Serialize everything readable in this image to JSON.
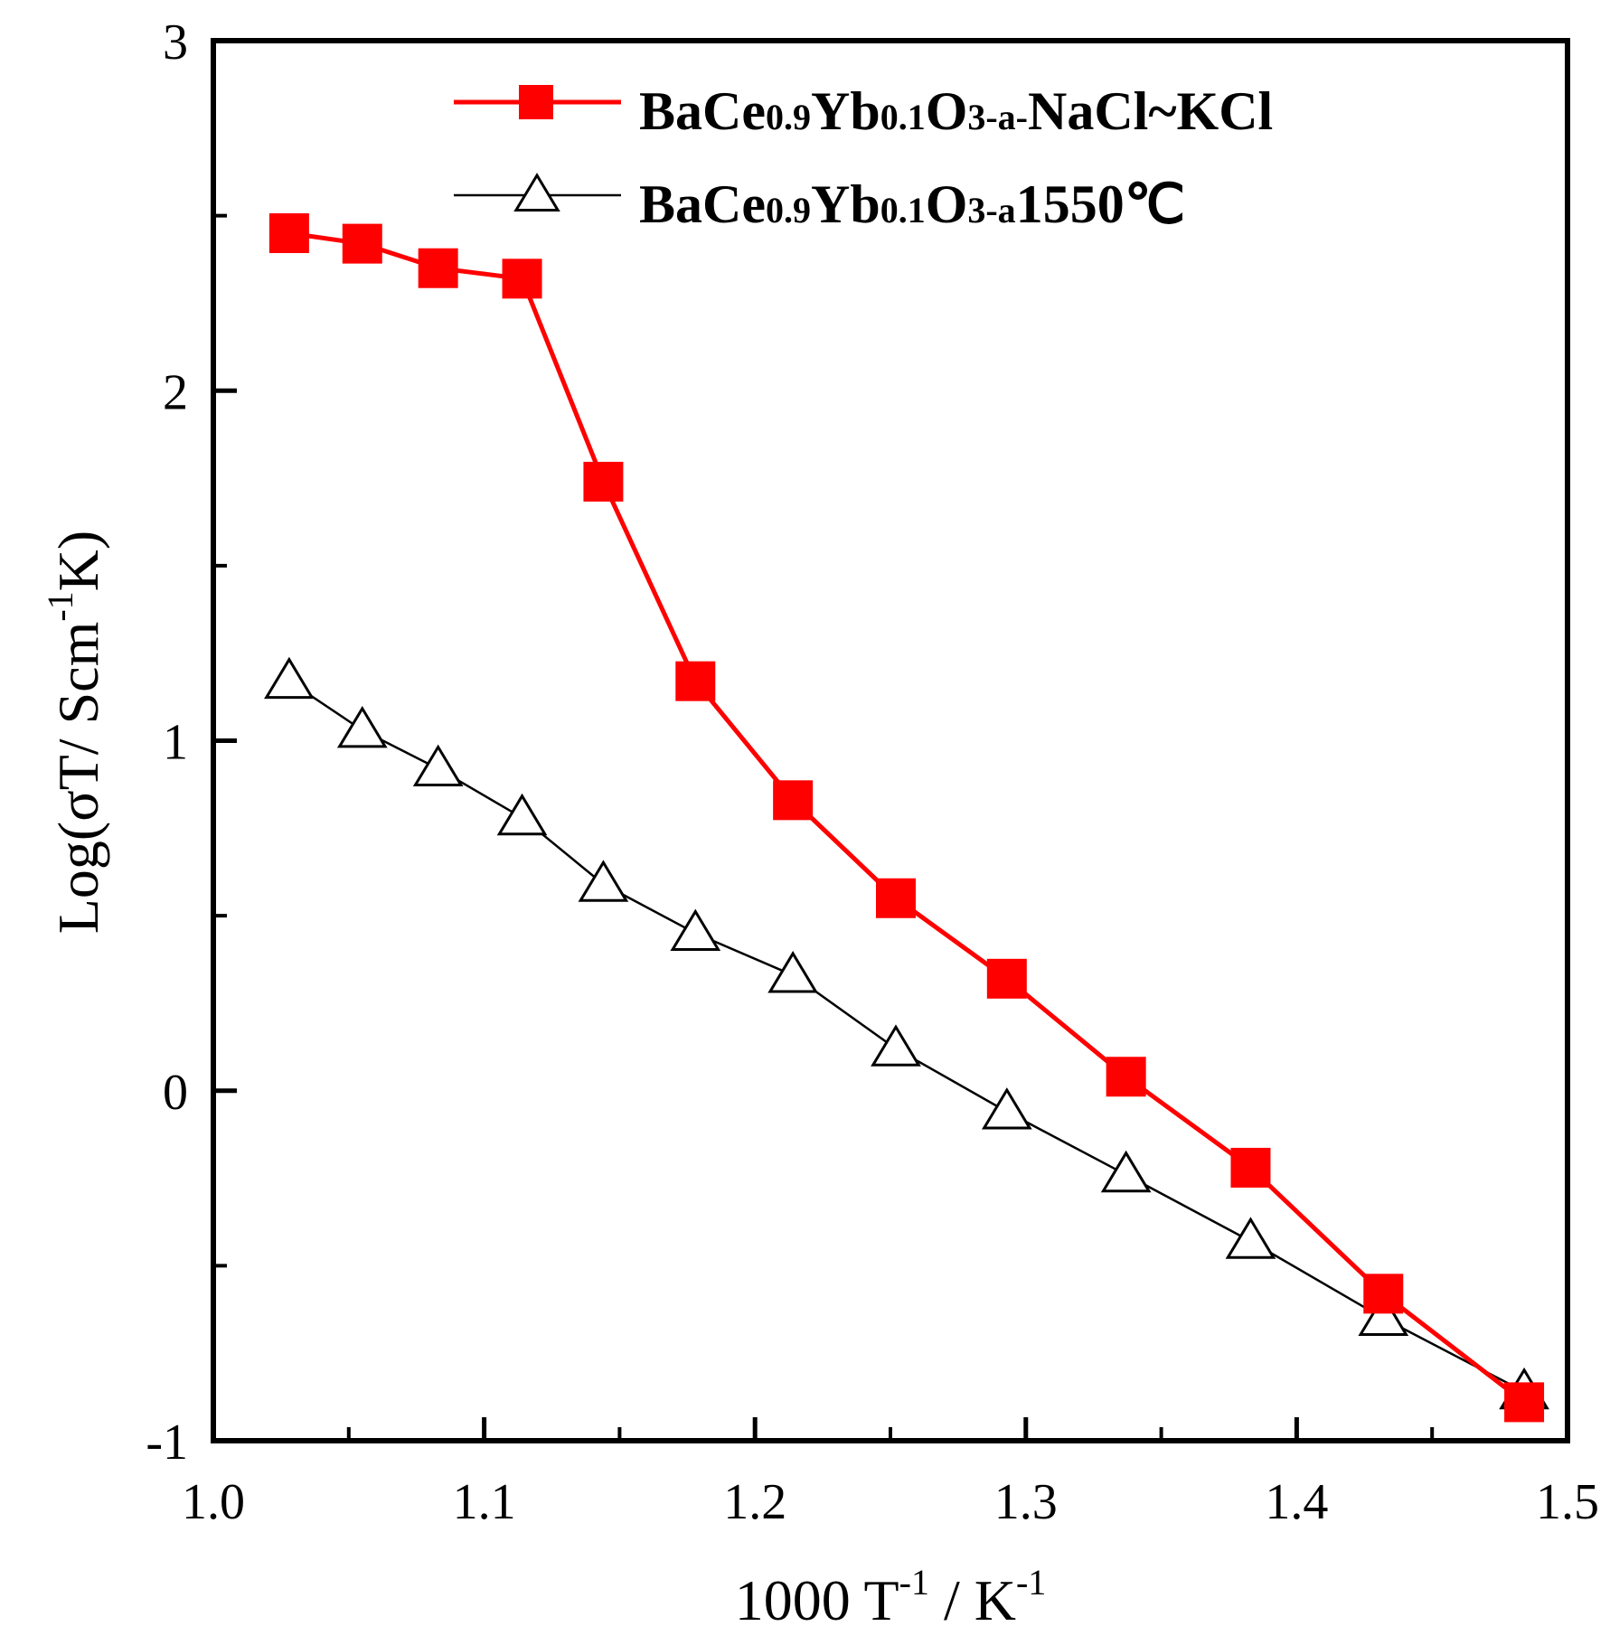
{
  "chart_data": {
    "type": "line",
    "title": "",
    "xlabel": "1000 T^-1 / K^-1",
    "ylabel": "Log(σT/ Scm^-1K)",
    "xlim": [
      1.0,
      1.5
    ],
    "ylim": [
      -1,
      3
    ],
    "x_ticks": [
      "1.0",
      "1.1",
      "1.2",
      "1.3",
      "1.4",
      "1.5"
    ],
    "y_ticks": [
      "-1",
      "0",
      "1",
      "2",
      "3"
    ],
    "x_tick_values": [
      1.0,
      1.1,
      1.2,
      1.3,
      1.4,
      1.5
    ],
    "y_tick_values": [
      -1,
      0,
      1,
      2,
      3
    ],
    "legend_position": "top-right",
    "series": [
      {
        "name": "BaCe0.9Yb0.1O3-a-NaCl~KCl",
        "color": "#ff0000",
        "marker": "filled-square",
        "x": [
          1.028,
          1.055,
          1.083,
          1.114,
          1.144,
          1.178,
          1.214,
          1.252,
          1.293,
          1.337,
          1.383,
          1.432,
          1.484
        ],
        "y": [
          2.45,
          2.42,
          2.35,
          2.32,
          1.74,
          1.17,
          0.83,
          0.55,
          0.32,
          0.04,
          -0.22,
          -0.58,
          -0.89
        ]
      },
      {
        "name": "BaCe0.9Yb0.1O3-a1550℃",
        "color": "#000000",
        "marker": "open-triangle",
        "x": [
          1.028,
          1.055,
          1.083,
          1.114,
          1.144,
          1.178,
          1.214,
          1.252,
          1.293,
          1.337,
          1.383,
          1.432,
          1.484
        ],
        "y": [
          1.17,
          1.03,
          0.92,
          0.78,
          0.59,
          0.45,
          0.33,
          0.12,
          -0.06,
          -0.24,
          -0.43,
          -0.65,
          -0.86
        ]
      }
    ]
  },
  "legend": {
    "entries": [
      {
        "base1": "BaCe",
        "sub1": "0.9",
        "base2": "Yb",
        "sub2": "0.1",
        "base3": "O",
        "sub3": "3-a-",
        "tail": "NaCl~KCl"
      },
      {
        "base1": "BaCe",
        "sub1": "0.9",
        "base2": "Yb",
        "sub2": "0.1",
        "base3": "O",
        "sub3": "3-a",
        "tail": "1550℃"
      }
    ]
  },
  "axis_titles": {
    "x": {
      "main": "1000 T",
      "sup1": "-1",
      "mid": " / K",
      "sup2": "-1"
    },
    "y": {
      "main": "Log(σT/ Scm",
      "sup": "-1",
      "tail": "K)"
    }
  }
}
